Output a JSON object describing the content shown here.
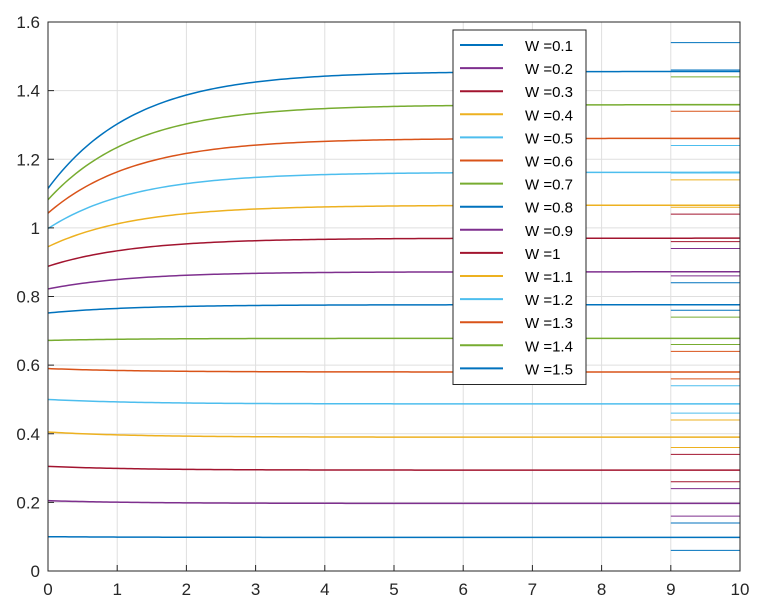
{
  "chart_data": {
    "type": "line",
    "title": "",
    "xlabel": "",
    "ylabel": "",
    "xlim": [
      0,
      10
    ],
    "ylim": [
      0,
      1.6
    ],
    "xticks": [
      0,
      1,
      2,
      3,
      4,
      5,
      6,
      7,
      8,
      9,
      10
    ],
    "xtick_labels": [
      "0",
      "1",
      "2",
      "3",
      "4",
      "5",
      "6",
      "7",
      "8",
      "9",
      "10"
    ],
    "yticks": [
      0,
      0.2,
      0.4,
      0.6,
      0.8,
      1,
      1.2,
      1.4,
      1.6
    ],
    "ytick_labels": [
      "0",
      "0.2",
      "0.4",
      "0.6",
      "0.8",
      "1",
      "1.2",
      "1.4",
      "1.6"
    ],
    "grid": true,
    "legend_position": "top-right (inside)",
    "series": [
      {
        "name": "W =0.1",
        "color": "#0072BD",
        "start": 0.1,
        "end": 0.098,
        "ref_lines": [
          0.06,
          0.14
        ]
      },
      {
        "name": "W =0.2",
        "color": "#7E2F8E",
        "start": 0.205,
        "end": 0.197,
        "ref_lines": [
          0.16,
          0.24
        ]
      },
      {
        "name": "W =0.3",
        "color": "#A2142F",
        "start": 0.305,
        "end": 0.294,
        "ref_lines": [
          0.26,
          0.34
        ]
      },
      {
        "name": "W =0.4",
        "color": "#EDB120",
        "start": 0.405,
        "end": 0.39,
        "ref_lines": [
          0.36,
          0.44
        ]
      },
      {
        "name": "W =0.5",
        "color": "#4DBEEE",
        "start": 0.5,
        "end": 0.487,
        "ref_lines": [
          0.46,
          0.54
        ]
      },
      {
        "name": "W =0.6",
        "color": "#D95319",
        "start": 0.59,
        "end": 0.58,
        "ref_lines": [
          0.56,
          0.64
        ]
      },
      {
        "name": "W =0.7",
        "color": "#77AC30",
        "start": 0.672,
        "end": 0.678,
        "ref_lines": [
          0.66,
          0.74
        ]
      },
      {
        "name": "W =0.8",
        "color": "#0072BD",
        "start": 0.752,
        "end": 0.776,
        "ref_lines": [
          0.76,
          0.84
        ]
      },
      {
        "name": "W =0.9",
        "color": "#7E2F8E",
        "start": 0.822,
        "end": 0.872,
        "ref_lines": [
          0.86,
          0.94
        ]
      },
      {
        "name": "W =1",
        "color": "#A2142F",
        "start": 0.888,
        "end": 0.97,
        "ref_lines": [
          0.96,
          1.04
        ]
      },
      {
        "name": "W =1.1",
        "color": "#EDB120",
        "start": 0.945,
        "end": 1.066,
        "ref_lines": [
          1.06,
          1.14
        ]
      },
      {
        "name": "W =1.2",
        "color": "#4DBEEE",
        "start": 0.998,
        "end": 1.162,
        "ref_lines": [
          1.16,
          1.24
        ]
      },
      {
        "name": "W =1.3",
        "color": "#D95319",
        "start": 1.043,
        "end": 1.261,
        "ref_lines": [
          1.26,
          1.34
        ]
      },
      {
        "name": "W =1.4",
        "color": "#77AC30",
        "start": 1.082,
        "end": 1.359,
        "ref_lines": [
          1.36,
          1.44
        ]
      },
      {
        "name": "W =1.5",
        "color": "#0072BD",
        "start": 1.115,
        "end": 1.456,
        "ref_lines": [
          1.46,
          1.54
        ]
      }
    ],
    "legend_order": [
      0,
      1,
      2,
      3,
      4,
      5,
      6,
      7,
      8,
      9,
      10,
      11,
      12,
      13,
      14
    ]
  }
}
